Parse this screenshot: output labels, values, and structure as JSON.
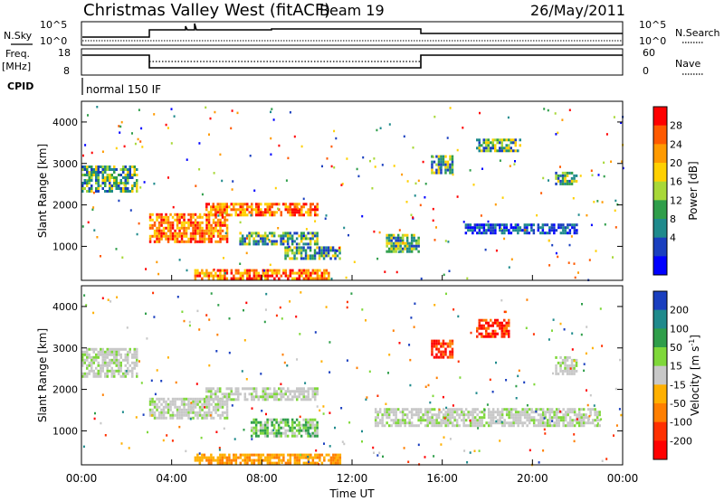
{
  "header": {
    "title": "Christmas Valley West (fitACF)",
    "beam": "Beam 19",
    "date": "26/May/2011"
  },
  "top_panels": {
    "nsky_label": "N.Sky",
    "nsearch_label": "N.Search",
    "nsky_ticks": [
      "10^5",
      "10^0"
    ],
    "nsearch_ticks": [
      "10^5",
      "10^0"
    ],
    "freq_label": "Freq.",
    "freq_unit": "[MHz]",
    "freq_ticks": [
      "18",
      "8"
    ],
    "nave_label": "Nave",
    "nave_ticks": [
      "60",
      "0"
    ],
    "cpid_label": "CPID",
    "cpid_text": "normal 150 IF"
  },
  "chart_data": [
    {
      "type": "heatmap",
      "name": "power",
      "ylabel": "Slant Range [km]",
      "xlabel": "",
      "xlim": [
        0,
        24
      ],
      "ylim": [
        180,
        4500
      ],
      "y_ticks": [
        "4000",
        "3000",
        "2000",
        "1000"
      ],
      "y_tick_values": [
        4000,
        3000,
        2000,
        1000
      ],
      "colorbar": {
        "label": "Power [dB]",
        "ticks": [
          "28",
          "24",
          "20",
          "16",
          "12",
          "8",
          "4"
        ],
        "colors": [
          "#ff0000",
          "#ff5a00",
          "#ff9a00",
          "#ffd000",
          "#a8d838",
          "#2f9e4a",
          "#1f8a8c",
          "#1a3fbf",
          "#0000ff"
        ]
      },
      "regions": [
        {
          "t0": 0.0,
          "t1": 2.5,
          "r0": 2300,
          "r1": 2950,
          "level": "mid"
        },
        {
          "t0": 3.0,
          "t1": 6.5,
          "r0": 1100,
          "r1": 1800,
          "level": "high"
        },
        {
          "t0": 5.5,
          "t1": 10.5,
          "r0": 1750,
          "r1": 2050,
          "level": "high"
        },
        {
          "t0": 7.0,
          "t1": 10.5,
          "r0": 1050,
          "r1": 1350,
          "level": "mid"
        },
        {
          "t0": 5.0,
          "t1": 11.0,
          "r0": 200,
          "r1": 450,
          "level": "high"
        },
        {
          "t0": 9.0,
          "t1": 11.5,
          "r0": 700,
          "r1": 1000,
          "level": "mid"
        },
        {
          "t0": 13.5,
          "t1": 15.0,
          "r0": 900,
          "r1": 1300,
          "level": "mid"
        },
        {
          "t0": 15.5,
          "t1": 16.5,
          "r0": 2800,
          "r1": 3200,
          "level": "mid"
        },
        {
          "t0": 17.0,
          "t1": 22.0,
          "r0": 1300,
          "r1": 1550,
          "level": "low"
        },
        {
          "t0": 17.5,
          "t1": 19.5,
          "r0": 3300,
          "r1": 3600,
          "level": "mid"
        },
        {
          "t0": 21.0,
          "t1": 22.0,
          "r0": 2500,
          "r1": 2800,
          "level": "mid"
        }
      ]
    },
    {
      "type": "heatmap",
      "name": "velocity",
      "ylabel": "Slant Range [km]",
      "xlabel": "Time UT",
      "xlim": [
        0,
        24
      ],
      "ylim": [
        180,
        4500
      ],
      "x_ticks": [
        "00:00",
        "04:00",
        "08:00",
        "12:00",
        "16:00",
        "20:00",
        "00:00"
      ],
      "x_tick_values": [
        0,
        4,
        8,
        12,
        16,
        20,
        24
      ],
      "y_ticks": [
        "4000",
        "3000",
        "2000",
        "1000"
      ],
      "y_tick_values": [
        4000,
        3000,
        2000,
        1000
      ],
      "colorbar": {
        "label": "Velocity [m s",
        "label_sup": "-1",
        "label_end": "]",
        "ticks": [
          "200",
          "100",
          "50",
          "15",
          "-15",
          "-50",
          "-100",
          "-200"
        ],
        "colors": [
          "#1a3fbf",
          "#1f8a8c",
          "#2f9e4a",
          "#7fd83a",
          "#c8c8c8",
          "#ffb000",
          "#ff7f00",
          "#ff3000",
          "#ff0000"
        ]
      },
      "regions": [
        {
          "t0": 0.0,
          "t1": 2.5,
          "r0": 2300,
          "r1": 3000,
          "level": "gray"
        },
        {
          "t0": 3.0,
          "t1": 6.5,
          "r0": 1300,
          "r1": 1800,
          "level": "gray"
        },
        {
          "t0": 5.5,
          "t1": 10.5,
          "r0": 1750,
          "r1": 2050,
          "level": "gray"
        },
        {
          "t0": 7.5,
          "t1": 10.5,
          "r0": 900,
          "r1": 1300,
          "level": "green"
        },
        {
          "t0": 5.0,
          "t1": 11.5,
          "r0": 200,
          "r1": 450,
          "level": "orange"
        },
        {
          "t0": 13.0,
          "t1": 23.0,
          "r0": 1100,
          "r1": 1550,
          "level": "gray"
        },
        {
          "t0": 17.5,
          "t1": 19.0,
          "r0": 3300,
          "r1": 3700,
          "level": "red"
        },
        {
          "t0": 15.5,
          "t1": 16.5,
          "r0": 2800,
          "r1": 3200,
          "level": "red"
        },
        {
          "t0": 21.0,
          "t1": 22.0,
          "r0": 2400,
          "r1": 2800,
          "level": "gray"
        }
      ]
    }
  ]
}
